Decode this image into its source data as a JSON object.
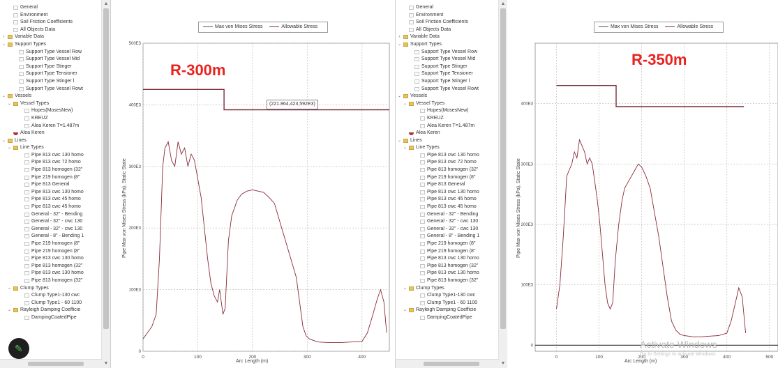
{
  "tree_left": {
    "items": [
      {
        "label": "General",
        "indent": 1,
        "icon": "doc",
        "expander": ""
      },
      {
        "label": "Environment",
        "indent": 1,
        "icon": "doc",
        "expander": ""
      },
      {
        "label": "Soil Friction Coefficients",
        "indent": 1,
        "icon": "doc",
        "expander": ""
      },
      {
        "label": "All Objects Data",
        "indent": 1,
        "icon": "doc",
        "expander": ""
      },
      {
        "label": "Variable Data",
        "indent": 0,
        "icon": "folder",
        "expander": "›"
      },
      {
        "label": "Support Types",
        "indent": 0,
        "icon": "folder",
        "expander": "⌄"
      },
      {
        "label": "Support Type Vessel Row",
        "indent": 2,
        "icon": "doc",
        "expander": ""
      },
      {
        "label": "Support Type Vessel Mid",
        "indent": 2,
        "icon": "doc",
        "expander": ""
      },
      {
        "label": "Support Type Stinger",
        "indent": 2,
        "icon": "doc",
        "expander": ""
      },
      {
        "label": "Support Type Tensioner",
        "indent": 2,
        "icon": "doc",
        "expander": ""
      },
      {
        "label": "Support Type Stinger l",
        "indent": 2,
        "icon": "doc",
        "expander": ""
      },
      {
        "label": "Support Type Vessel Rowt",
        "indent": 2,
        "icon": "doc",
        "expander": ""
      },
      {
        "label": "Vessels",
        "indent": 0,
        "icon": "folder",
        "expander": "⌄"
      },
      {
        "label": "Vessel Types",
        "indent": 1,
        "icon": "folder",
        "expander": "⌄"
      },
      {
        "label": "Hopes(MosesNew)",
        "indent": 3,
        "icon": "doc",
        "expander": ""
      },
      {
        "label": "KREUZ",
        "indent": 3,
        "icon": "doc",
        "expander": ""
      },
      {
        "label": "Alea Keren T=1.487m",
        "indent": 3,
        "icon": "doc",
        "expander": ""
      },
      {
        "label": "Alea Keren",
        "indent": 1,
        "icon": "vessel",
        "expander": ""
      },
      {
        "label": "Lines",
        "indent": 0,
        "icon": "folder",
        "expander": "⌄"
      },
      {
        "label": "Line Types",
        "indent": 1,
        "icon": "folder",
        "expander": "⌄"
      },
      {
        "label": "Pipe 813 cwc 130 homo",
        "indent": 3,
        "icon": "doc",
        "expander": ""
      },
      {
        "label": "Pipe 813 cwc 72 homo",
        "indent": 3,
        "icon": "doc",
        "expander": ""
      },
      {
        "label": "Pipe 813 homogen (32\"",
        "indent": 3,
        "icon": "doc",
        "expander": ""
      },
      {
        "label": "Pipe 219 homogen (8\"",
        "indent": 3,
        "icon": "doc",
        "expander": ""
      },
      {
        "label": "Pipe 813 General",
        "indent": 3,
        "icon": "doc",
        "expander": ""
      },
      {
        "label": "Pipe 813 cwc 130 homo",
        "indent": 3,
        "icon": "doc",
        "expander": ""
      },
      {
        "label": "Pipe 813 cwc 45 homo",
        "indent": 3,
        "icon": "doc",
        "expander": ""
      },
      {
        "label": "Pipe 813 cwc 45 homo",
        "indent": 3,
        "icon": "doc",
        "expander": ""
      },
      {
        "label": "General - 32\" - Bending",
        "indent": 3,
        "icon": "doc",
        "expander": ""
      },
      {
        "label": "General - 32\" - cwc 130",
        "indent": 3,
        "icon": "doc",
        "expander": ""
      },
      {
        "label": "General - 32\" - cwc 130",
        "indent": 3,
        "icon": "doc",
        "expander": ""
      },
      {
        "label": "General - 8\" - Bending 1",
        "indent": 3,
        "icon": "doc",
        "expander": ""
      },
      {
        "label": "Pipe 219 homogen (8\"",
        "indent": 3,
        "icon": "doc",
        "expander": ""
      },
      {
        "label": "Pipe 219 homogen (8\"",
        "indent": 3,
        "icon": "doc",
        "expander": ""
      },
      {
        "label": "Pipe 813 cwc 130 homo",
        "indent": 3,
        "icon": "doc",
        "expander": ""
      },
      {
        "label": "Pipe 813 homogen (32\"",
        "indent": 3,
        "icon": "doc",
        "expander": ""
      },
      {
        "label": "Pipe 813 cwc 130 homo",
        "indent": 3,
        "icon": "doc",
        "expander": ""
      },
      {
        "label": "Pipe 813 homogen (32\"",
        "indent": 3,
        "icon": "doc",
        "expander": ""
      },
      {
        "label": "Clump Types",
        "indent": 1,
        "icon": "folder",
        "expander": "⌄"
      },
      {
        "label": "Clump Type1-130 cwc",
        "indent": 3,
        "icon": "doc",
        "expander": ""
      },
      {
        "label": "Clump Type1 - 60 1100",
        "indent": 3,
        "icon": "doc",
        "expander": ""
      },
      {
        "label": "Rayleigh Damping Coefficie",
        "indent": 1,
        "icon": "folder",
        "expander": "⌄"
      },
      {
        "label": "DampingCoatedPipe",
        "indent": 3,
        "icon": "doc",
        "expander": ""
      }
    ]
  },
  "tree_right": {
    "items": [
      {
        "label": "General",
        "indent": 1,
        "icon": "doc",
        "expander": ""
      },
      {
        "label": "Environment",
        "indent": 1,
        "icon": "doc",
        "expander": ""
      },
      {
        "label": "Soil Friction Coefficients",
        "indent": 1,
        "icon": "doc",
        "expander": ""
      },
      {
        "label": "All Objects Data",
        "indent": 1,
        "icon": "doc",
        "expander": ""
      },
      {
        "label": "Variable Data",
        "indent": 0,
        "icon": "folder",
        "expander": "›"
      },
      {
        "label": "Support Types",
        "indent": 0,
        "icon": "folder",
        "expander": "⌄"
      },
      {
        "label": "Support Type Vessel Row",
        "indent": 2,
        "icon": "doc",
        "expander": ""
      },
      {
        "label": "Support Type Vessel Mid",
        "indent": 2,
        "icon": "doc",
        "expander": ""
      },
      {
        "label": "Support Type Stinger",
        "indent": 2,
        "icon": "doc",
        "expander": ""
      },
      {
        "label": "Support Type Tensioner",
        "indent": 2,
        "icon": "doc",
        "expander": ""
      },
      {
        "label": "Support Type Stinger l",
        "indent": 2,
        "icon": "doc",
        "expander": ""
      },
      {
        "label": "Support Type Vessel Rowt",
        "indent": 2,
        "icon": "doc",
        "expander": ""
      },
      {
        "label": "Vessels",
        "indent": 0,
        "icon": "folder",
        "expander": "⌄"
      },
      {
        "label": "Vessel Types",
        "indent": 1,
        "icon": "folder",
        "expander": "⌄"
      },
      {
        "label": "Hopes(MosesNew)",
        "indent": 3,
        "icon": "doc",
        "expander": ""
      },
      {
        "label": "KREUZ",
        "indent": 3,
        "icon": "doc",
        "expander": ""
      },
      {
        "label": "Alea Keren T=1.487m",
        "indent": 3,
        "icon": "doc",
        "expander": ""
      },
      {
        "label": "Alea Keren",
        "indent": 1,
        "icon": "vessel",
        "expander": ""
      },
      {
        "label": "Lines",
        "indent": 0,
        "icon": "folder",
        "expander": "⌄"
      },
      {
        "label": "Line Types",
        "indent": 1,
        "icon": "folder",
        "expander": "⌄"
      },
      {
        "label": "Pipe 813 cwc 130 homo",
        "indent": 3,
        "icon": "doc",
        "expander": ""
      },
      {
        "label": "Pipe 813 cwc 72 homo",
        "indent": 3,
        "icon": "doc",
        "expander": ""
      },
      {
        "label": "Pipe 813 homogen (32\"",
        "indent": 3,
        "icon": "doc",
        "expander": ""
      },
      {
        "label": "Pipe 219 homogen (8\"",
        "indent": 3,
        "icon": "doc",
        "expander": ""
      },
      {
        "label": "Pipe 813 General",
        "indent": 3,
        "icon": "doc",
        "expander": ""
      },
      {
        "label": "Pipe 813 cwc 130 homo",
        "indent": 3,
        "icon": "doc",
        "expander": ""
      },
      {
        "label": "Pipe 813 cwc 45 homo",
        "indent": 3,
        "icon": "doc",
        "expander": ""
      },
      {
        "label": "Pipe 813 cwc 45 homo",
        "indent": 3,
        "icon": "doc",
        "expander": ""
      },
      {
        "label": "General - 32\" - Bending",
        "indent": 3,
        "icon": "doc",
        "expander": ""
      },
      {
        "label": "General - 32\" - cwc 130",
        "indent": 3,
        "icon": "doc",
        "expander": ""
      },
      {
        "label": "General - 32\" - cwc 130",
        "indent": 3,
        "icon": "doc",
        "expander": ""
      },
      {
        "label": "General - 8\" - Bending 1",
        "indent": 3,
        "icon": "doc",
        "expander": ""
      },
      {
        "label": "Pipe 219 homogen (8\"",
        "indent": 3,
        "icon": "doc",
        "expander": ""
      },
      {
        "label": "Pipe 219 homogen (8\"",
        "indent": 3,
        "icon": "doc",
        "expander": ""
      },
      {
        "label": "Pipe 813 cwc 130 homo",
        "indent": 3,
        "icon": "doc",
        "expander": ""
      },
      {
        "label": "Pipe 813 homogen (32\"",
        "indent": 3,
        "icon": "doc",
        "expander": ""
      },
      {
        "label": "Pipe 813 cwc 130 homo",
        "indent": 3,
        "icon": "doc",
        "expander": ""
      },
      {
        "label": "Pipe 813 homogen (32\"",
        "indent": 3,
        "icon": "doc",
        "expander": ""
      },
      {
        "label": "Clump Types",
        "indent": 1,
        "icon": "folder",
        "expander": "⌄"
      },
      {
        "label": "Clump Type1-130 cwc",
        "indent": 3,
        "icon": "doc",
        "expander": ""
      },
      {
        "label": "Clump Type1 - 60 1100",
        "indent": 3,
        "icon": "doc",
        "expander": ""
      },
      {
        "label": "Rayleigh Damping Coefficie",
        "indent": 1,
        "icon": "folder",
        "expander": "⌄"
      },
      {
        "label": "DampingCoatedPipe",
        "indent": 3,
        "icon": "doc",
        "expander": ""
      }
    ]
  },
  "chart_data": [
    {
      "type": "line",
      "title": "R-300m",
      "xlabel": "Arc Length (m)",
      "ylabel": "Pipe Max von Mises Stress (kPa), Static State",
      "xlim": [
        0,
        450
      ],
      "ylim": [
        0,
        500000
      ],
      "x_ticks": [
        "0",
        "100",
        "200",
        "300",
        "400"
      ],
      "y_ticks": [
        "0",
        "100E3",
        "200E3",
        "300E3",
        "400E3",
        "500E3"
      ],
      "grid": true,
      "legend": "top-center",
      "tooltip": "(221.864,423,592E3)",
      "series": [
        {
          "name": "Max von Mises Stress",
          "color": "#8b2a35",
          "x": [
            0,
            8,
            16,
            24,
            30,
            36,
            40,
            46,
            52,
            58,
            64,
            70,
            76,
            82,
            88,
            94,
            100,
            106,
            112,
            118,
            124,
            130,
            136,
            140,
            146,
            150,
            156,
            162,
            168,
            172,
            180,
            190,
            200,
            210,
            220,
            230,
            240,
            250,
            260,
            270,
            280,
            286,
            292,
            298,
            304,
            310,
            320,
            340,
            360,
            380,
            400,
            410,
            420,
            428,
            434,
            440,
            445
          ],
          "y": [
            20000,
            30000,
            40000,
            60000,
            150000,
            300000,
            330000,
            340000,
            310000,
            300000,
            340000,
            320000,
            330000,
            300000,
            320000,
            310000,
            280000,
            250000,
            200000,
            150000,
            110000,
            90000,
            80000,
            100000,
            60000,
            70000,
            180000,
            220000,
            235000,
            245000,
            255000,
            260000,
            262000,
            260000,
            258000,
            250000,
            240000,
            210000,
            180000,
            150000,
            120000,
            80000,
            40000,
            25000,
            20000,
            18000,
            15000,
            14000,
            14000,
            15000,
            16000,
            30000,
            60000,
            85000,
            100000,
            80000,
            30000
          ]
        },
        {
          "name": "Allowable Stress",
          "color": "#7a2e3a",
          "x": [
            0,
            148,
            148,
            450
          ],
          "y": [
            425000,
            425000,
            392000,
            392000
          ]
        }
      ]
    },
    {
      "type": "line",
      "title": "R-350m",
      "xlabel": "Arc Length (m)",
      "ylabel": "Pipe Max von Mises Stress (kPa), Static State",
      "xlim": [
        -50,
        520
      ],
      "ylim": [
        -10000,
        500000
      ],
      "x_ticks": [
        "0",
        "100",
        "200",
        "300",
        "400",
        "500"
      ],
      "y_ticks": [
        "0",
        "100E3",
        "200E3",
        "300E3",
        "400E3"
      ],
      "grid": true,
      "legend": "top-center",
      "series": [
        {
          "name": "Max von Mises Stress",
          "color": "#8b2a35",
          "x": [
            0,
            8,
            16,
            24,
            30,
            36,
            42,
            48,
            54,
            60,
            66,
            72,
            78,
            84,
            90,
            96,
            102,
            108,
            114,
            120,
            126,
            132,
            138,
            146,
            154,
            160,
            168,
            176,
            184,
            192,
            200,
            210,
            220,
            230,
            240,
            250,
            260,
            270,
            280,
            290,
            300,
            310,
            320,
            340,
            360,
            380,
            400,
            410,
            420,
            428,
            436,
            444
          ],
          "y": [
            60000,
            100000,
            180000,
            280000,
            290000,
            300000,
            320000,
            310000,
            340000,
            330000,
            320000,
            300000,
            310000,
            300000,
            270000,
            240000,
            200000,
            150000,
            100000,
            70000,
            60000,
            70000,
            140000,
            200000,
            240000,
            260000,
            270000,
            280000,
            290000,
            300000,
            295000,
            280000,
            260000,
            220000,
            180000,
            130000,
            80000,
            40000,
            25000,
            18000,
            16000,
            15000,
            14000,
            14000,
            15000,
            16000,
            20000,
            40000,
            70000,
            95000,
            80000,
            20000
          ]
        },
        {
          "name": "Allowable Stress",
          "color": "#7a2e3a",
          "x": [
            0,
            140,
            140,
            440
          ],
          "y": [
            430000,
            430000,
            395000,
            395000
          ]
        }
      ]
    }
  ],
  "legend_labels": {
    "max_vm": "Max von Mises Stress",
    "allowable": "Allowable Stress"
  },
  "left_chart": {
    "title": "R-300m",
    "tooltip": "(221.864,423,592E3)",
    "ylabel": "Pipe Max von Mises Stress (kPa), Static State",
    "xlabel": "Arc Length (m)",
    "y_ticks": [
      "500E3",
      "400E3",
      "300E3",
      "200E3",
      "100E3",
      "0"
    ],
    "x_ticks": [
      "0",
      "100",
      "200",
      "300",
      "400"
    ]
  },
  "right_chart": {
    "title": "R-350m",
    "ylabel": "Pipe Max von Mises Stress (kPa), Static State",
    "xlabel": "Arc Length (m)",
    "y_ticks": [
      "400E3",
      "300E3",
      "200E3",
      "100E3",
      "0"
    ],
    "x_ticks": [
      "0",
      "100",
      "200",
      "300",
      "400",
      "500"
    ]
  },
  "watermark": {
    "line1": "Activate Windows",
    "line2": "Go to Settings to activate Windows"
  },
  "colors": {
    "max_vm_line": "#8b2a35",
    "allowable_line": "#7a2e3a",
    "title_red": "#e8241f",
    "zero_line": "#333333"
  },
  "edit_button_icon": "pencil-icon"
}
